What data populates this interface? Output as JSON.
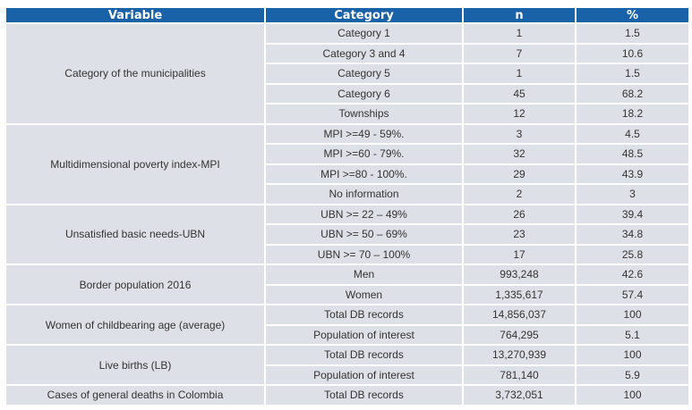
{
  "headers": [
    "Variable",
    "Category",
    "n",
    "%"
  ],
  "groups": [
    {
      "variable": "Category of the municipalities",
      "rows": [
        [
          "Category 1",
          "1",
          "1.5"
        ],
        [
          "Category 3 and 4",
          "7",
          "10.6"
        ],
        [
          "Category 5",
          "1",
          "1.5"
        ],
        [
          "Category 6",
          "45",
          "68.2"
        ],
        [
          "Townships",
          "12",
          "18.2"
        ]
      ]
    },
    {
      "variable": "Multidimensional poverty index-MPI",
      "rows": [
        [
          "MPI >=49 - 59%.",
          "3",
          "4.5"
        ],
        [
          "MPI >=60 - 79%.",
          "32",
          "48.5"
        ],
        [
          "MPI >=80 - 100%.",
          "29",
          "43.9"
        ],
        [
          "No information",
          "2",
          "3"
        ]
      ]
    },
    {
      "variable": "Unsatisfied basic needs-UBN",
      "rows": [
        [
          "UBN >= 22 – 49%",
          "26",
          "39.4"
        ],
        [
          "UBN >= 50 – 69%",
          "23",
          "34.8"
        ],
        [
          "UBN >= 70 – 100%",
          "17",
          "25.8"
        ]
      ]
    },
    {
      "variable": "Border population 2016",
      "rows": [
        [
          "Men",
          "993,248",
          "42.6"
        ],
        [
          "Women",
          "1,335,617",
          "57.4"
        ]
      ]
    },
    {
      "variable": "Women of childbearing age (average)",
      "rows": [
        [
          "Total DB records",
          "14,856,037",
          "100"
        ],
        [
          "Population of interest",
          "764,295",
          "5.1"
        ]
      ]
    },
    {
      "variable": "Live births (LB)",
      "rows": [
        [
          "Total DB records",
          "13,270,939",
          "100"
        ],
        [
          "Population of interest",
          "781,140",
          "5.9"
        ]
      ]
    },
    {
      "variable": "Cases of general deaths in Colombia",
      "rows": [
        [
          "Total DB records",
          "3,732,051",
          "100"
        ]
      ]
    }
  ]
}
